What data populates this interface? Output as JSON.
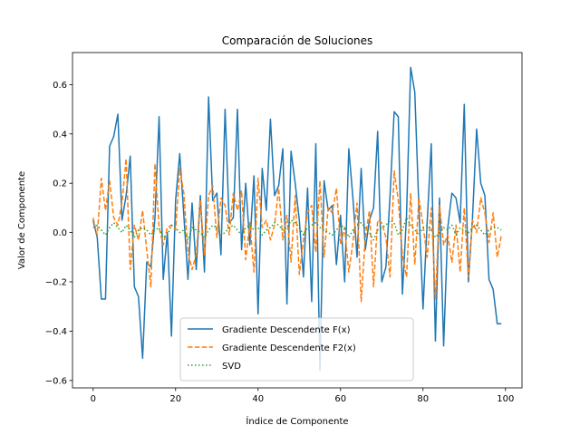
{
  "chart_data": {
    "type": "line",
    "title": "Comparación de Soluciones",
    "xlabel": "Índice de Componente",
    "ylabel": "Valor de Componente",
    "xlim": [
      -5,
      104
    ],
    "ylim": [
      -0.63,
      0.73
    ],
    "xticks": [
      0,
      20,
      40,
      60,
      80,
      100
    ],
    "xtick_labels": [
      "0",
      "20",
      "40",
      "60",
      "80",
      "100"
    ],
    "yticks": [
      -0.6,
      -0.4,
      -0.2,
      0.0,
      0.2,
      0.4,
      0.6
    ],
    "ytick_labels": [
      "−0.6",
      "−0.4",
      "−0.2",
      "0.0",
      "0.2",
      "0.4",
      "0.6"
    ],
    "grid": false,
    "legend_position": "lower-center",
    "series": [
      {
        "name": "Gradiente Descendente F(x)",
        "color": "#1f77b4",
        "style": "solid",
        "values": [
          0.05,
          -0.02,
          -0.27,
          -0.27,
          0.35,
          0.39,
          0.48,
          0.05,
          0.15,
          0.31,
          -0.22,
          -0.26,
          -0.51,
          -0.12,
          -0.14,
          0.06,
          0.47,
          -0.19,
          0.0,
          -0.42,
          0.13,
          0.32,
          0.07,
          -0.19,
          0.12,
          -0.15,
          0.15,
          -0.16,
          0.55,
          0.13,
          0.16,
          -0.09,
          0.5,
          0.04,
          0.06,
          0.5,
          -0.07,
          0.2,
          -0.05,
          0.23,
          -0.33,
          0.26,
          0.09,
          0.46,
          0.15,
          0.19,
          0.34,
          -0.29,
          0.33,
          0.2,
          0.05,
          -0.18,
          0.18,
          -0.28,
          0.36,
          -0.56,
          0.21,
          0.09,
          0.11,
          -0.13,
          0.07,
          -0.2,
          0.34,
          0.14,
          -0.1,
          0.26,
          -0.07,
          0.05,
          0.1,
          0.41,
          -0.2,
          -0.14,
          0.15,
          0.49,
          0.47,
          -0.25,
          0.07,
          0.67,
          0.57,
          0.1,
          -0.31,
          0.04,
          0.36,
          -0.44,
          0.14,
          -0.46,
          0.02,
          0.16,
          0.14,
          0.04,
          0.52,
          -0.2,
          0.06,
          0.42,
          0.2,
          0.15,
          -0.19,
          -0.23,
          -0.37,
          -0.37
        ]
      },
      {
        "name": "Gradiente Descendente F2(x)",
        "color": "#ff7f0e",
        "style": "dashed",
        "values": [
          0.06,
          -0.01,
          0.22,
          0.09,
          0.21,
          0.06,
          0.03,
          0.12,
          0.3,
          -0.15,
          0.03,
          -0.03,
          0.09,
          -0.07,
          -0.22,
          0.28,
          0.02,
          -0.05,
          0.02,
          0.03,
          0.01,
          0.26,
          0.16,
          -0.08,
          -0.15,
          -0.09,
          0.13,
          -0.09,
          0.15,
          0.19,
          -0.02,
          0.14,
          0.11,
          -0.01,
          0.16,
          0.09,
          0.17,
          -0.11,
          0.04,
          -0.16,
          0.22,
          0.02,
          0.05,
          -0.03,
          0.03,
          0.18,
          -0.03,
          0.07,
          -0.12,
          0.15,
          -0.17,
          -0.03,
          0.08,
          0.11,
          -0.08,
          0.21,
          -0.1,
          0.1,
          0.08,
          0.18,
          -0.05,
          0.02,
          -0.16,
          -0.04,
          0.12,
          -0.28,
          -0.02,
          0.09,
          -0.22,
          0.05,
          0.04,
          -0.02,
          -0.18,
          0.25,
          0.13,
          -0.09,
          -0.18,
          0.16,
          -0.13,
          0.14,
          0.03,
          -0.1,
          0.1,
          -0.27,
          0.11,
          -0.05,
          -0.01,
          -0.12,
          0.03,
          -0.16,
          0.1,
          -0.18,
          0.05,
          0.0,
          0.14,
          0.08,
          -0.04,
          0.08,
          -0.1,
          -0.01
        ]
      },
      {
        "name": "SVD",
        "color": "#2ca02c",
        "style": "dotted",
        "values": [
          0.02,
          0.03,
          0.01,
          -0.01,
          0.02,
          0.04,
          0.02,
          0.0,
          0.03,
          0.01,
          -0.02,
          0.01,
          0.02,
          0.01,
          -0.01,
          0.01,
          0.02,
          -0.02,
          -0.01,
          0.03,
          0.02,
          0.0,
          0.01,
          -0.03,
          0.02,
          0.01,
          0.0,
          -0.02,
          0.01,
          0.03,
          0.02,
          -0.01,
          0.0,
          0.02,
          0.03,
          0.01,
          -0.01,
          0.02,
          0.03,
          0.01,
          0.02,
          -0.01,
          0.01,
          0.02,
          0.04,
          0.03,
          0.01,
          0.02,
          0.05,
          0.04,
          0.02,
          -0.01,
          0.02,
          0.03,
          0.04,
          0.02,
          0.01,
          0.0,
          -0.01,
          0.01,
          0.03,
          0.02,
          -0.02,
          0.01,
          0.03,
          0.04,
          0.02,
          0.0,
          -0.03,
          0.01,
          0.02,
          0.03,
          0.05,
          0.04,
          -0.01,
          0.01,
          0.06,
          0.03,
          0.01,
          -0.01,
          0.02,
          0.03,
          0.01,
          -0.02,
          0.0,
          0.02,
          0.01,
          0.03,
          -0.01,
          0.02,
          0.01,
          0.0,
          0.02,
          0.03,
          0.01,
          -0.01,
          0.01,
          0.02,
          0.02,
          0.01
        ]
      }
    ]
  }
}
